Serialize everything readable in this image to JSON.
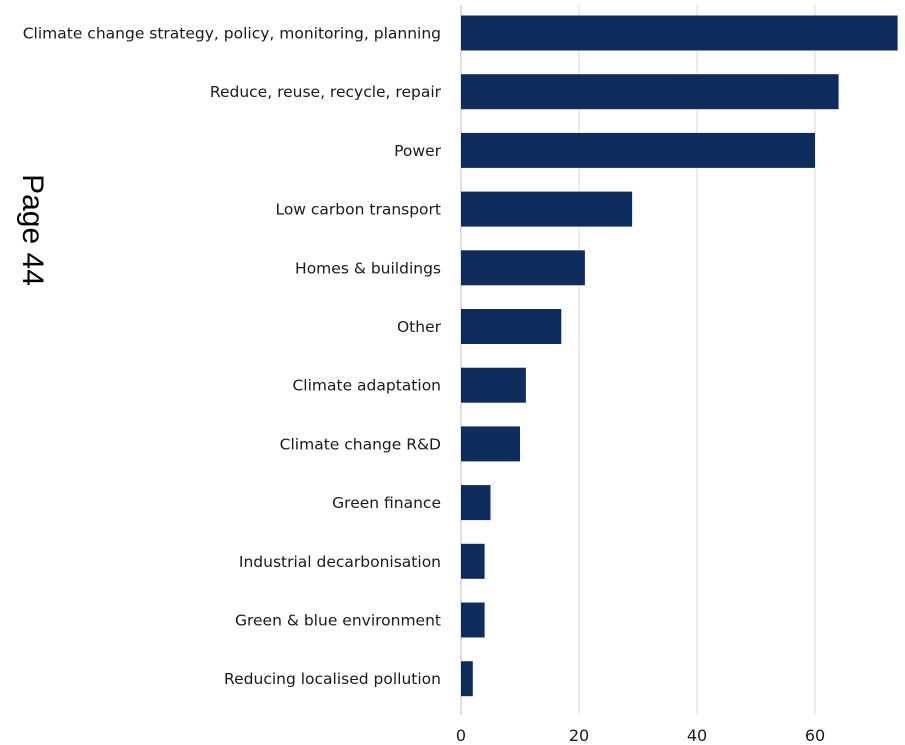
{
  "page_label": "Page 44",
  "colors": {
    "bar": "#0f2d5c",
    "grid": "#d9d9d9",
    "axis": "#bfbfbf"
  },
  "chart_data": {
    "type": "bar",
    "orientation": "horizontal",
    "categories": [
      "Climate change strategy, policy, monitoring, planning",
      "Reduce, reuse, recycle, repair",
      "Power",
      "Low carbon transport",
      "Homes & buildings",
      "Other",
      "Climate adaptation",
      "Climate change R&D",
      "Green finance",
      "Industrial decarbonisation",
      "Green & blue environment",
      "Reducing localised pollution"
    ],
    "values": [
      74,
      64,
      60,
      29,
      21,
      17,
      11,
      10,
      5,
      4,
      4,
      2
    ],
    "xlim": [
      0,
      75
    ],
    "xticks": [
      0,
      20,
      40,
      60
    ],
    "grid": true
  }
}
